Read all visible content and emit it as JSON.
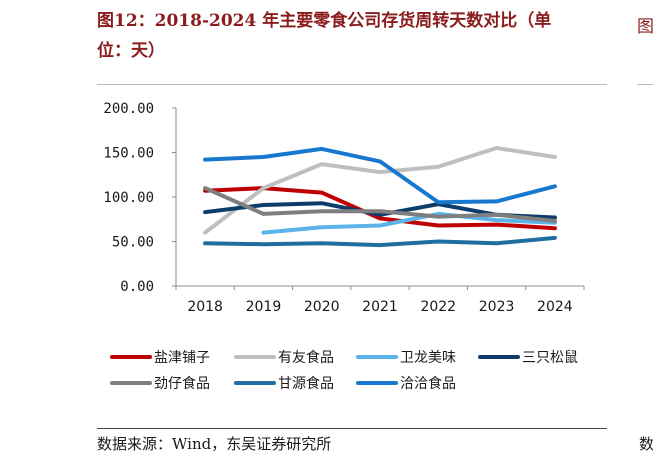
{
  "figure": {
    "title": "图12：2018-2024 年主要零食公司存货周转天数对比（单\n位：天）",
    "source": "数据来源：Wind，东吴证券研究所",
    "right_clip_title": "图",
    "right_clip_source": "数"
  },
  "chart_data": {
    "type": "line",
    "title": "",
    "xlabel": "",
    "ylabel": "",
    "x": [
      "2018",
      "2019",
      "2020",
      "2021",
      "2022",
      "2023",
      "2024"
    ],
    "ylim": [
      0,
      200
    ],
    "yticks": [
      "0.00",
      "50.00",
      "100.00",
      "150.00",
      "200.00"
    ],
    "grid": false,
    "legend_position": "bottom",
    "series": [
      {
        "name": "盐津铺子",
        "color": "#c00000",
        "values": [
          107,
          110,
          105,
          76,
          68,
          69,
          65
        ]
      },
      {
        "name": "有友食品",
        "color": "#bfbfbf",
        "values": [
          60,
          110,
          137,
          128,
          134,
          155,
          145
        ]
      },
      {
        "name": "卫龙美味",
        "color": "#5ab4e8",
        "values": [
          null,
          60,
          66,
          68,
          81,
          74,
          71
        ]
      },
      {
        "name": "三只松鼠",
        "color": "#0e3d6b",
        "values": [
          83,
          91,
          93,
          80,
          92,
          80,
          77
        ]
      },
      {
        "name": "劲仔食品",
        "color": "#7f7f7f",
        "values": [
          110,
          81,
          84,
          84,
          78,
          80,
          73
        ]
      },
      {
        "name": "甘源食品",
        "color": "#1f6fa0",
        "values": [
          48,
          47,
          48,
          46,
          50,
          48,
          54
        ]
      },
      {
        "name": "洽洽食品",
        "color": "#1878d0",
        "values": [
          142,
          145,
          154,
          140,
          94,
          95,
          112
        ]
      }
    ]
  }
}
